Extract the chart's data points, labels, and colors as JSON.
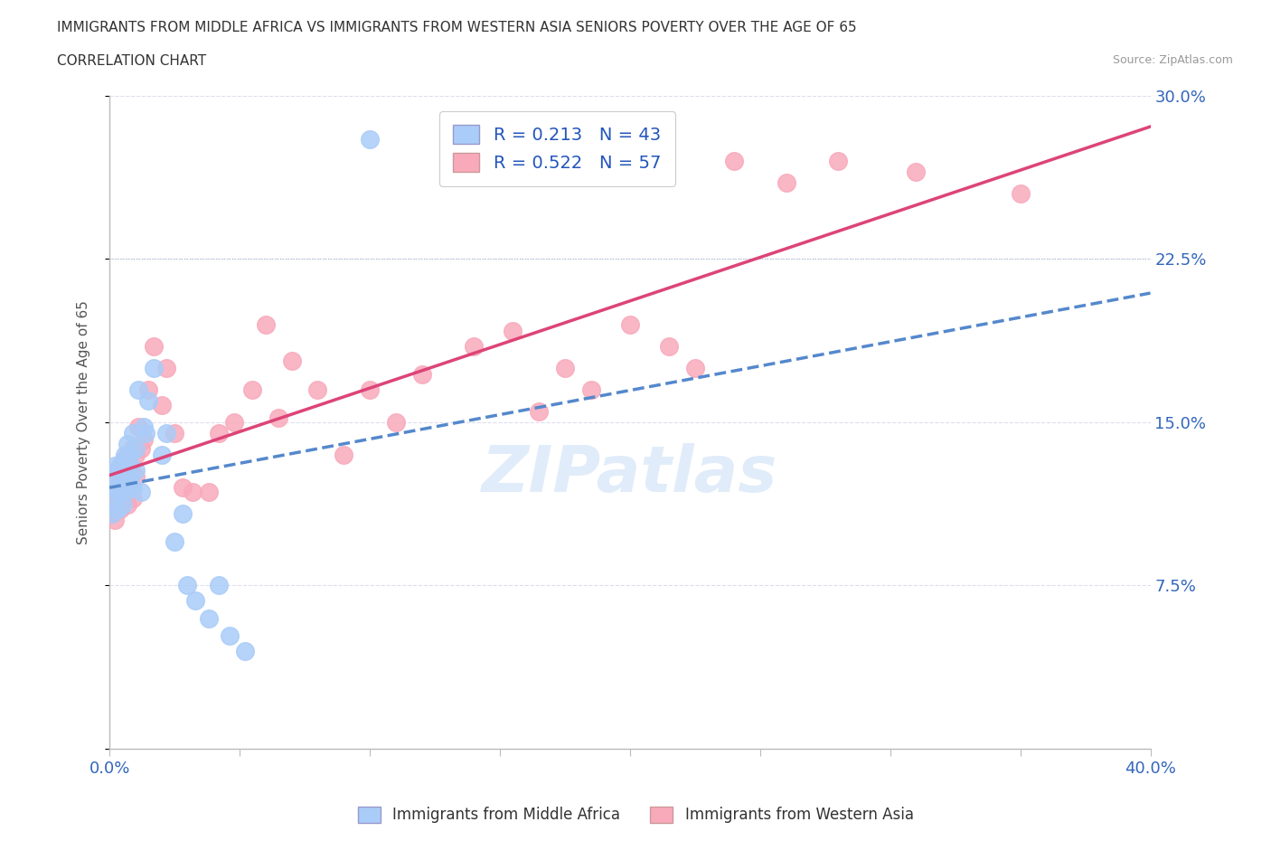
{
  "title": "IMMIGRANTS FROM MIDDLE AFRICA VS IMMIGRANTS FROM WESTERN ASIA SENIORS POVERTY OVER THE AGE OF 65",
  "subtitle": "CORRELATION CHART",
  "source": "Source: ZipAtlas.com",
  "xlabel": "",
  "ylabel": "Seniors Poverty Over the Age of 65",
  "xlim": [
    0.0,
    0.4
  ],
  "ylim": [
    0.0,
    0.3
  ],
  "xticks": [
    0.0,
    0.05,
    0.1,
    0.15,
    0.2,
    0.25,
    0.3,
    0.35,
    0.4
  ],
  "yticks": [
    0.0,
    0.075,
    0.15,
    0.225,
    0.3
  ],
  "ytick_labels_right": [
    "",
    "7.5%",
    "15.0%",
    "22.5%",
    "30.0%"
  ],
  "blue_R": 0.213,
  "blue_N": 43,
  "pink_R": 0.522,
  "pink_N": 57,
  "blue_color": "#aaccf8",
  "pink_color": "#f8aabb",
  "blue_line_color": "#5588cc",
  "pink_line_color": "#dd4477",
  "legend_label_blue": "Immigrants from Middle Africa",
  "legend_label_pink": "Immigrants from Western Asia",
  "watermark": "ZIPatlas",
  "blue_scatter_x": [
    0.001,
    0.001,
    0.002,
    0.002,
    0.002,
    0.003,
    0.003,
    0.003,
    0.004,
    0.004,
    0.004,
    0.005,
    0.005,
    0.005,
    0.006,
    0.006,
    0.006,
    0.007,
    0.007,
    0.007,
    0.008,
    0.008,
    0.009,
    0.009,
    0.01,
    0.01,
    0.011,
    0.012,
    0.013,
    0.014,
    0.015,
    0.017,
    0.02,
    0.022,
    0.025,
    0.028,
    0.03,
    0.033,
    0.038,
    0.042,
    0.046,
    0.052,
    0.1
  ],
  "blue_scatter_y": [
    0.108,
    0.12,
    0.115,
    0.125,
    0.13,
    0.11,
    0.118,
    0.128,
    0.122,
    0.13,
    0.118,
    0.112,
    0.125,
    0.132,
    0.118,
    0.128,
    0.135,
    0.12,
    0.13,
    0.14,
    0.125,
    0.135,
    0.12,
    0.145,
    0.128,
    0.138,
    0.165,
    0.118,
    0.148,
    0.145,
    0.16,
    0.175,
    0.135,
    0.145,
    0.095,
    0.108,
    0.075,
    0.068,
    0.06,
    0.075,
    0.052,
    0.045,
    0.28
  ],
  "pink_scatter_x": [
    0.001,
    0.001,
    0.002,
    0.002,
    0.003,
    0.003,
    0.003,
    0.004,
    0.004,
    0.005,
    0.005,
    0.005,
    0.006,
    0.006,
    0.007,
    0.007,
    0.008,
    0.008,
    0.009,
    0.009,
    0.01,
    0.01,
    0.011,
    0.012,
    0.013,
    0.015,
    0.017,
    0.02,
    0.022,
    0.025,
    0.028,
    0.032,
    0.038,
    0.042,
    0.048,
    0.055,
    0.06,
    0.065,
    0.07,
    0.08,
    0.09,
    0.1,
    0.11,
    0.12,
    0.14,
    0.155,
    0.165,
    0.175,
    0.185,
    0.2,
    0.215,
    0.225,
    0.24,
    0.26,
    0.28,
    0.31,
    0.35
  ],
  "pink_scatter_y": [
    0.108,
    0.115,
    0.105,
    0.118,
    0.112,
    0.12,
    0.128,
    0.11,
    0.125,
    0.115,
    0.122,
    0.132,
    0.118,
    0.128,
    0.112,
    0.135,
    0.12,
    0.13,
    0.115,
    0.138,
    0.125,
    0.135,
    0.148,
    0.138,
    0.142,
    0.165,
    0.185,
    0.158,
    0.175,
    0.145,
    0.12,
    0.118,
    0.118,
    0.145,
    0.15,
    0.165,
    0.195,
    0.152,
    0.178,
    0.165,
    0.135,
    0.165,
    0.15,
    0.172,
    0.185,
    0.192,
    0.155,
    0.175,
    0.165,
    0.195,
    0.185,
    0.175,
    0.27,
    0.26,
    0.27,
    0.265,
    0.255
  ]
}
